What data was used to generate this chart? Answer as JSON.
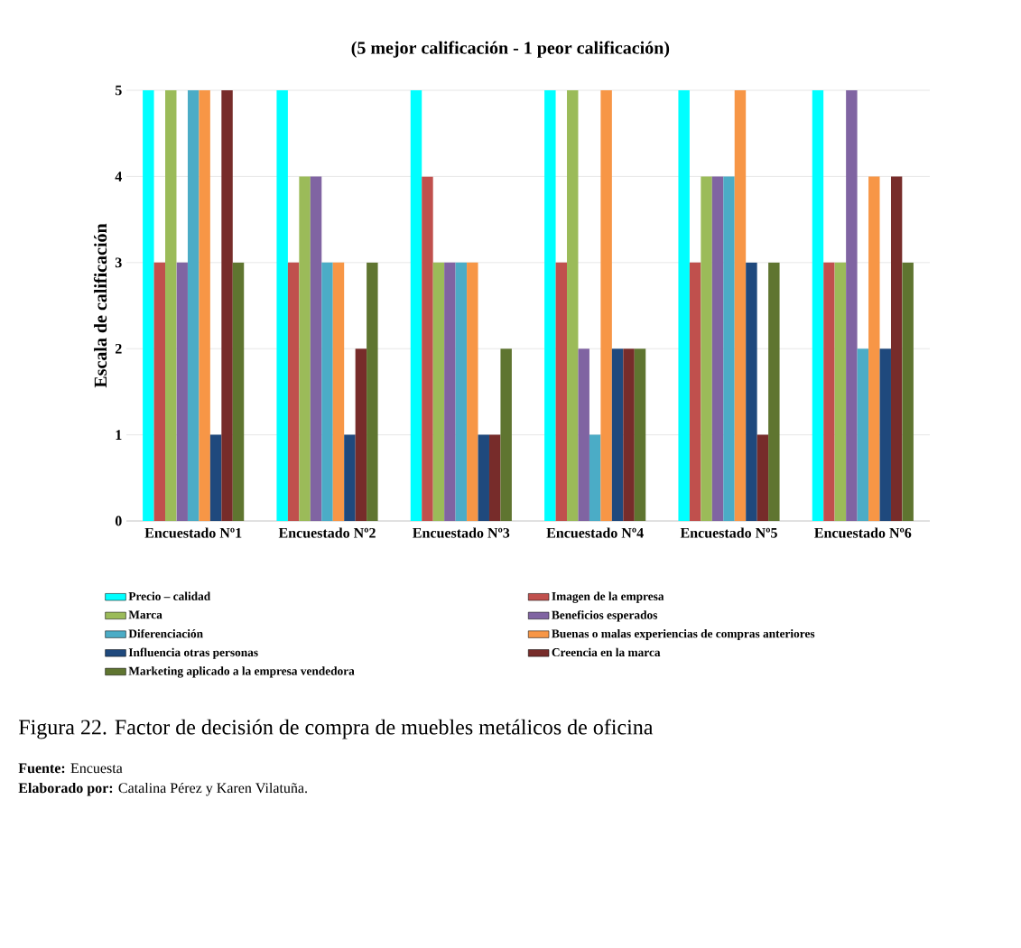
{
  "chart_data": {
    "type": "bar",
    "title": "(5 mejor calificación - 1 peor calificación)",
    "ylabel": "Escala de calificación",
    "categories": [
      "Encuestado Nº1",
      "Encuestado Nº2",
      "Encuestado Nº3",
      "Encuestado Nº4",
      "Encuestado Nº5",
      "Encuestado Nº6"
    ],
    "series": [
      {
        "name": "Precio – calidad",
        "color": "#00ffff",
        "values": [
          5,
          5,
          5,
          5,
          5,
          5
        ]
      },
      {
        "name": "Imagen de la empresa",
        "color": "#c0504d",
        "values": [
          3,
          3,
          4,
          3,
          3,
          3
        ]
      },
      {
        "name": "Marca",
        "color": "#9bbb59",
        "values": [
          5,
          4,
          3,
          5,
          4,
          3
        ]
      },
      {
        "name": "Beneficios esperados",
        "color": "#8064a2",
        "values": [
          3,
          4,
          3,
          2,
          4,
          5
        ]
      },
      {
        "name": "Diferenciación",
        "color": "#4bacc6",
        "values": [
          5,
          3,
          3,
          1,
          4,
          2
        ]
      },
      {
        "name": "Buenas o malas experiencias de compras anteriores",
        "color": "#f79646",
        "values": [
          5,
          3,
          3,
          5,
          5,
          4
        ]
      },
      {
        "name": "Influencia otras personas",
        "color": "#1f497d",
        "values": [
          1,
          1,
          1,
          2,
          3,
          2
        ]
      },
      {
        "name": "Creencia en la marca",
        "color": "#772c2a",
        "values": [
          5,
          2,
          1,
          2,
          1,
          4
        ]
      },
      {
        "name": "Marketing aplicado a la empresa vendedora",
        "color": "#5f7530",
        "values": [
          3,
          3,
          2,
          2,
          3,
          3
        ]
      }
    ],
    "ylim": [
      0,
      5
    ],
    "yticks": [
      0,
      1,
      2,
      3,
      4,
      5
    ],
    "grid": "y",
    "legend": "bottom",
    "annotations": [
      "Figura 22. Factor de decisión de compra de muebles metálicos de oficina",
      "**Fuente:** Encuesta",
      "**Elaborado por:** Catalina Pérez y Karen Vilatuña."
    ]
  }
}
